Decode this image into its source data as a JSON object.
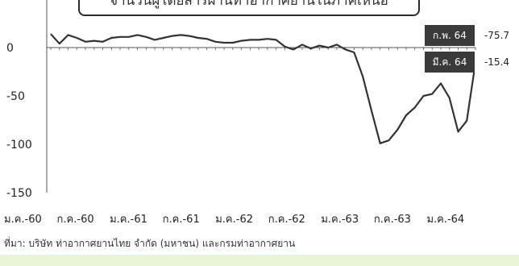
{
  "chart_data": {
    "type": "line",
    "title": "จำนวนผู้โดยสารผ่านท่าอากาศยานในภาคเหนือ",
    "ylim": [
      -150,
      30
    ],
    "yticks": [
      0,
      -50,
      -100,
      -150
    ],
    "xtick_labels": [
      "ม.ค.-60",
      "ก.ค.-60",
      "ม.ค.-61",
      "ก.ค.-61",
      "ม.ค.-62",
      "ก.ค.-62",
      "ม.ค.-63",
      "ก.ค.-63",
      "ม.ค.-64"
    ],
    "values": [
      14,
      4,
      13,
      10,
      6,
      7,
      6,
      10,
      11,
      11,
      13,
      11,
      8,
      10,
      12,
      13,
      12,
      10,
      9,
      6,
      5,
      5,
      7,
      8,
      8,
      9,
      8,
      1,
      -2,
      3,
      -1,
      2,
      0,
      3,
      -2,
      -5,
      -30,
      -65,
      -99,
      -96,
      -85,
      -70,
      -62,
      -50,
      -48,
      -37,
      -52,
      -87,
      -75.7,
      -15.4
    ],
    "callouts": [
      {
        "label": "ก.พ. 64",
        "value": "-75.7"
      },
      {
        "label": "มี.ค. 64",
        "value": "-15.4"
      }
    ],
    "series_color": "#333333"
  },
  "source": "ที่มา: บริษัท ท่าอากาศยานไทย จำกัด (มหาชน) และกรมท่าอากาศยาน"
}
